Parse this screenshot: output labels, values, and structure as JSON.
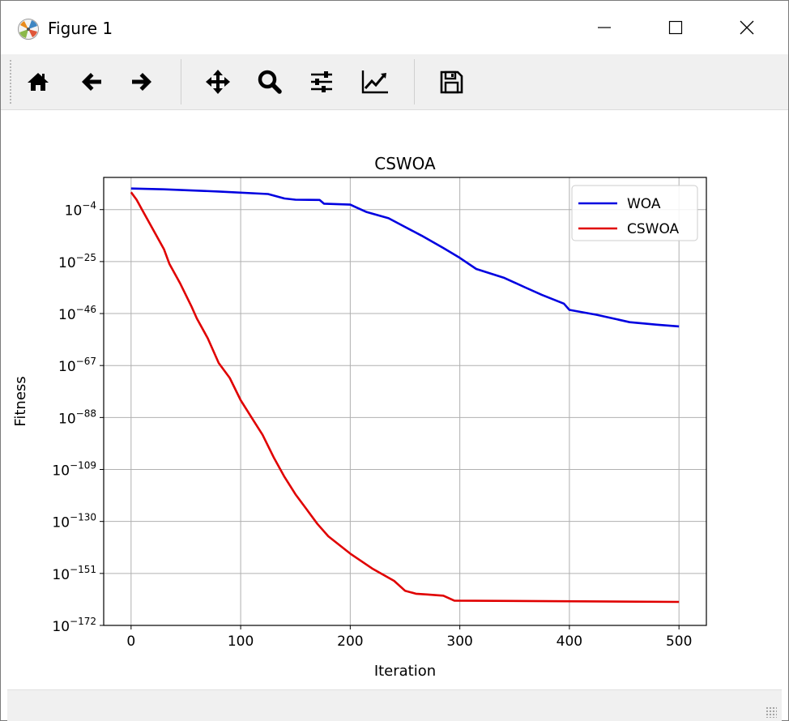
{
  "window": {
    "title": "Figure 1"
  },
  "titlebar_buttons": {
    "minimize": "minimize-icon",
    "maximize": "maximize-icon",
    "close": "close-icon"
  },
  "toolbar": {
    "buttons": [
      {
        "name": "home-button",
        "icon": "home-icon"
      },
      {
        "name": "back-button",
        "icon": "arrow-left-icon"
      },
      {
        "name": "forward-button",
        "icon": "arrow-right-icon"
      },
      {
        "name": "pan-button",
        "icon": "move-icon"
      },
      {
        "name": "zoom-button",
        "icon": "magnifier-icon"
      },
      {
        "name": "subplots-button",
        "icon": "sliders-icon"
      },
      {
        "name": "edit-axes-button",
        "icon": "line-chart-icon"
      },
      {
        "name": "save-button",
        "icon": "floppy-disk-icon"
      }
    ]
  },
  "chart_data": {
    "type": "line",
    "title": "CSWOA",
    "xlabel": "Iteration",
    "ylabel": "Fitness",
    "yscale": "log",
    "xlim": [
      -25,
      525
    ],
    "ylim_exponent": [
      -172,
      9
    ],
    "xticks": [
      0,
      100,
      200,
      300,
      400,
      500
    ],
    "yticks_exponent": [
      -4,
      -25,
      -46,
      -67,
      -88,
      -109,
      -130,
      -151,
      -172
    ],
    "ytick_base": "10",
    "grid": true,
    "legend_position": "upper right",
    "series": [
      {
        "name": "WOA",
        "color": "#0000e0",
        "log10_points": [
          [
            0,
            4.5
          ],
          [
            30,
            4.2
          ],
          [
            80,
            3.3
          ],
          [
            125,
            2.3
          ],
          [
            140,
            0.5
          ],
          [
            150,
            0
          ],
          [
            172,
            -0.1
          ],
          [
            176,
            -1.6
          ],
          [
            200,
            -2
          ],
          [
            205,
            -3
          ],
          [
            215,
            -5
          ],
          [
            235,
            -7.5
          ],
          [
            250,
            -11
          ],
          [
            265,
            -14.5
          ],
          [
            285,
            -19.5
          ],
          [
            300,
            -23.5
          ],
          [
            315,
            -28
          ],
          [
            340,
            -31.5
          ],
          [
            360,
            -35.5
          ],
          [
            375,
            -38.5
          ],
          [
            395,
            -42
          ],
          [
            400,
            -44.5
          ],
          [
            425,
            -46.5
          ],
          [
            440,
            -48
          ],
          [
            455,
            -49.5
          ],
          [
            480,
            -50.5
          ],
          [
            500,
            -51.2
          ]
        ]
      },
      {
        "name": "CSWOA",
        "color": "#e00000",
        "log10_points": [
          [
            0,
            3
          ],
          [
            5,
            0
          ],
          [
            10,
            -4
          ],
          [
            20,
            -12
          ],
          [
            30,
            -20
          ],
          [
            35,
            -26
          ],
          [
            45,
            -34
          ],
          [
            55,
            -43
          ],
          [
            60,
            -48
          ],
          [
            70,
            -56
          ],
          [
            80,
            -66
          ],
          [
            90,
            -72
          ],
          [
            100,
            -81
          ],
          [
            110,
            -88
          ],
          [
            120,
            -95
          ],
          [
            130,
            -104
          ],
          [
            140,
            -112
          ],
          [
            150,
            -119
          ],
          [
            160,
            -125
          ],
          [
            170,
            -131
          ],
          [
            180,
            -136
          ],
          [
            200,
            -143
          ],
          [
            220,
            -149
          ],
          [
            240,
            -154
          ],
          [
            250,
            -158
          ],
          [
            260,
            -159.2
          ],
          [
            270,
            -159.5
          ],
          [
            285,
            -160
          ],
          [
            295,
            -162
          ],
          [
            500,
            -162.5
          ]
        ]
      }
    ]
  }
}
